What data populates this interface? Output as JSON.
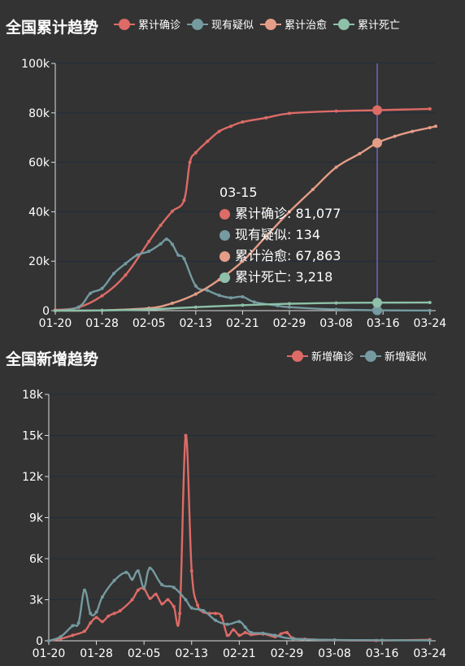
{
  "colors": {
    "confirmed": "#dd6b66",
    "suspected": "#759aa0",
    "healed": "#e69d87",
    "dead": "#8dc1a9",
    "grid": "#1f2d3d",
    "axis": "#dddddd",
    "pointer": "#8a7fff"
  },
  "tooltip": {
    "date": "03-15",
    "rows": [
      {
        "label": "累计确诊: 81,077",
        "color": "#dd6b66"
      },
      {
        "label": "现有疑似: 134",
        "color": "#759aa0"
      },
      {
        "label": "累计治愈: 67,863",
        "color": "#e69d87"
      },
      {
        "label": "累计死亡: 3,218",
        "color": "#8dc1a9"
      }
    ]
  },
  "chart_data": [
    {
      "type": "line",
      "title": "全国累计趋势",
      "xlabel": "",
      "ylabel": "",
      "x_ticks": [
        "01-20",
        "01-28",
        "02-05",
        "02-13",
        "02-21",
        "02-29",
        "03-08",
        "03-16",
        "03-24"
      ],
      "x_range": [
        "01-20",
        "03-25"
      ],
      "ylim": [
        0,
        100000
      ],
      "y_ticks": [
        "0",
        "20k",
        "40k",
        "60k",
        "80k",
        "100k"
      ],
      "grid": true,
      "legend": "top-right",
      "pointer": "03-15",
      "series": [
        {
          "name": "累计确诊",
          "color": "#dd6b66",
          "points": [
            [
              "01-20",
              300
            ],
            [
              "01-24",
              1300
            ],
            [
              "01-28",
              6000
            ],
            [
              "02-01",
              14400
            ],
            [
              "02-05",
              28000
            ],
            [
              "02-07",
              34500
            ],
            [
              "02-09",
              40200
            ],
            [
              "02-11",
              44600
            ],
            [
              "02-12",
              60000
            ],
            [
              "02-13",
              63900
            ],
            [
              "02-15",
              68500
            ],
            [
              "02-17",
              72500
            ],
            [
              "02-19",
              74600
            ],
            [
              "02-21",
              76300
            ],
            [
              "02-25",
              78000
            ],
            [
              "02-29",
              79800
            ],
            [
              "03-08",
              80700
            ],
            [
              "03-15",
              81077
            ],
            [
              "03-24",
              81600
            ]
          ]
        },
        {
          "name": "现有疑似",
          "color": "#759aa0",
          "points": [
            [
              "01-20",
              0
            ],
            [
              "01-24",
              1500
            ],
            [
              "01-26",
              7000
            ],
            [
              "01-28",
              9000
            ],
            [
              "01-30",
              15000
            ],
            [
              "02-01",
              19000
            ],
            [
              "02-03",
              22500
            ],
            [
              "02-05",
              24000
            ],
            [
              "02-07",
              27000
            ],
            [
              "02-08",
              28900
            ],
            [
              "02-09",
              26800
            ],
            [
              "02-10",
              22500
            ],
            [
              "02-11",
              21000
            ],
            [
              "02-13",
              10000
            ],
            [
              "02-15",
              8200
            ],
            [
              "02-17",
              6200
            ],
            [
              "02-19",
              5200
            ],
            [
              "02-21",
              5600
            ],
            [
              "02-23",
              3500
            ],
            [
              "02-27",
              2000
            ],
            [
              "02-29",
              1400
            ],
            [
              "03-08",
              500
            ],
            [
              "03-15",
              134
            ],
            [
              "03-24",
              60
            ]
          ]
        },
        {
          "name": "累计治愈",
          "color": "#e69d87",
          "points": [
            [
              "01-20",
              0
            ],
            [
              "01-28",
              100
            ],
            [
              "02-05",
              1000
            ],
            [
              "02-09",
              3000
            ],
            [
              "02-13",
              6700
            ],
            [
              "02-17",
              12500
            ],
            [
              "02-21",
              20000
            ],
            [
              "02-25",
              30000
            ],
            [
              "02-29",
              40000
            ],
            [
              "03-04",
              49000
            ],
            [
              "03-08",
              58000
            ],
            [
              "03-12",
              63500
            ],
            [
              "03-15",
              67863
            ],
            [
              "03-18",
              70500
            ],
            [
              "03-21",
              72500
            ],
            [
              "03-24",
              74000
            ],
            [
              "03-25",
              74600
            ]
          ]
        },
        {
          "name": "累计死亡",
          "color": "#8dc1a9",
          "points": [
            [
              "01-20",
              0
            ],
            [
              "01-28",
              100
            ],
            [
              "02-05",
              500
            ],
            [
              "02-13",
              1400
            ],
            [
              "02-21",
              2200
            ],
            [
              "02-29",
              2800
            ],
            [
              "03-08",
              3100
            ],
            [
              "03-15",
              3218
            ],
            [
              "03-24",
              3280
            ]
          ]
        }
      ]
    },
    {
      "type": "line",
      "title": "全国新增趋势",
      "xlabel": "",
      "ylabel": "",
      "x_ticks": [
        "01-20",
        "01-28",
        "02-05",
        "02-13",
        "02-21",
        "02-29",
        "03-08",
        "03-16",
        "03-24"
      ],
      "x_range": [
        "01-20",
        "03-25"
      ],
      "ylim": [
        0,
        18000
      ],
      "y_ticks": [
        "0",
        "3k",
        "6k",
        "9k",
        "12k",
        "15k",
        "18k"
      ],
      "grid": true,
      "legend": "top-right",
      "series": [
        {
          "name": "新增确诊",
          "color": "#dd6b66",
          "points": [
            [
              "01-20",
              0
            ],
            [
              "01-22",
              150
            ],
            [
              "01-24",
              400
            ],
            [
              "01-26",
              700
            ],
            [
              "01-27",
              1300
            ],
            [
              "01-28",
              1700
            ],
            [
              "01-29",
              1400
            ],
            [
              "01-30",
              1800
            ],
            [
              "01-31",
              2000
            ],
            [
              "02-01",
              2200
            ],
            [
              "02-03",
              3000
            ],
            [
              "02-04",
              3700
            ],
            [
              "02-05",
              3800
            ],
            [
              "02-06",
              3100
            ],
            [
              "02-07",
              3400
            ],
            [
              "02-08",
              2700
            ],
            [
              "02-09",
              3000
            ],
            [
              "02-10",
              2500
            ],
            [
              "02-11",
              2000
            ],
            [
              "02-12",
              15000
            ],
            [
              "02-13",
              5100
            ],
            [
              "02-14",
              2600
            ],
            [
              "02-15",
              2100
            ],
            [
              "02-16",
              2000
            ],
            [
              "02-17",
              2000
            ],
            [
              "02-18",
              1800
            ],
            [
              "02-19",
              400
            ],
            [
              "02-20",
              800
            ],
            [
              "02-21",
              400
            ],
            [
              "02-22",
              600
            ],
            [
              "02-23",
              450
            ],
            [
              "02-25",
              500
            ],
            [
              "02-27",
              300
            ],
            [
              "02-28",
              500
            ],
            [
              "02-29",
              600
            ],
            [
              "03-01",
              200
            ],
            [
              "03-03",
              120
            ],
            [
              "03-08",
              50
            ],
            [
              "03-15",
              20
            ],
            [
              "03-24",
              80
            ]
          ]
        },
        {
          "name": "新增疑似",
          "color": "#759aa0",
          "points": [
            [
              "01-20",
              0
            ],
            [
              "01-22",
              300
            ],
            [
              "01-24",
              1100
            ],
            [
              "01-25",
              1300
            ],
            [
              "01-26",
              3700
            ],
            [
              "01-27",
              2000
            ],
            [
              "01-28",
              2100
            ],
            [
              "01-29",
              3200
            ],
            [
              "01-31",
              4400
            ],
            [
              "02-02",
              5000
            ],
            [
              "02-03",
              4500
            ],
            [
              "02-04",
              5100
            ],
            [
              "02-05",
              3900
            ],
            [
              "02-06",
              5300
            ],
            [
              "02-08",
              4100
            ],
            [
              "02-10",
              3900
            ],
            [
              "02-12",
              3000
            ],
            [
              "02-13",
              2400
            ],
            [
              "02-15",
              2200
            ],
            [
              "02-17",
              1500
            ],
            [
              "02-19",
              1200
            ],
            [
              "02-21",
              1400
            ],
            [
              "02-22",
              1000
            ],
            [
              "02-23",
              600
            ],
            [
              "02-25",
              550
            ],
            [
              "02-27",
              400
            ],
            [
              "03-01",
              150
            ],
            [
              "03-08",
              60
            ],
            [
              "03-16",
              40
            ],
            [
              "03-24",
              30
            ]
          ]
        }
      ]
    }
  ]
}
